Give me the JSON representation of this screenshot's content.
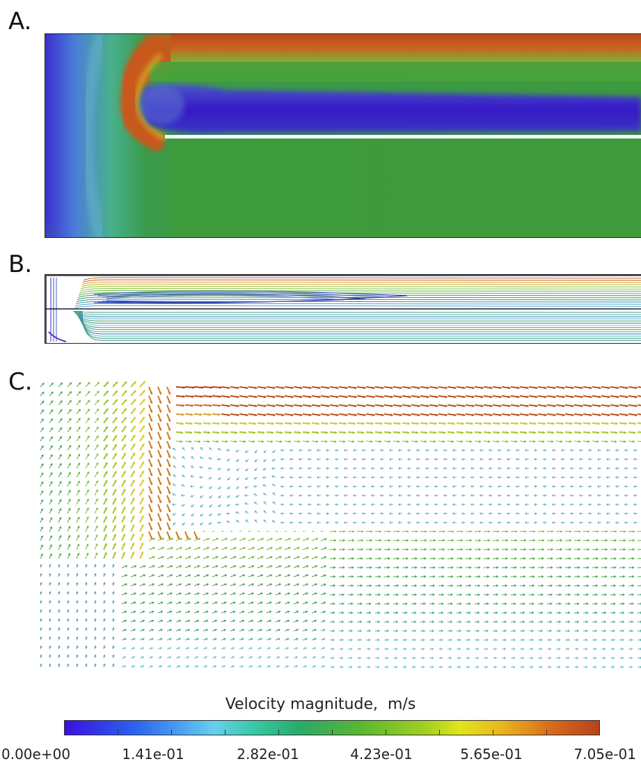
{
  "panels": {
    "a": {
      "label": "A."
    },
    "b": {
      "label": "B."
    },
    "c": {
      "label": "C."
    }
  },
  "colorbar": {
    "title": "Velocity magnitude,  m/s",
    "min": 0.0,
    "max": 0.705,
    "tick_labels": [
      "0.00e+00",
      "1.41e-01",
      "2.82e-01",
      "4.23e-01",
      "5.65e-01",
      "7.05e-01"
    ],
    "colors": [
      "#3b10e0",
      "#4ea2f0",
      "#2aa96a",
      "#a6d11f",
      "#e9b41f",
      "#b6431c"
    ]
  }
}
